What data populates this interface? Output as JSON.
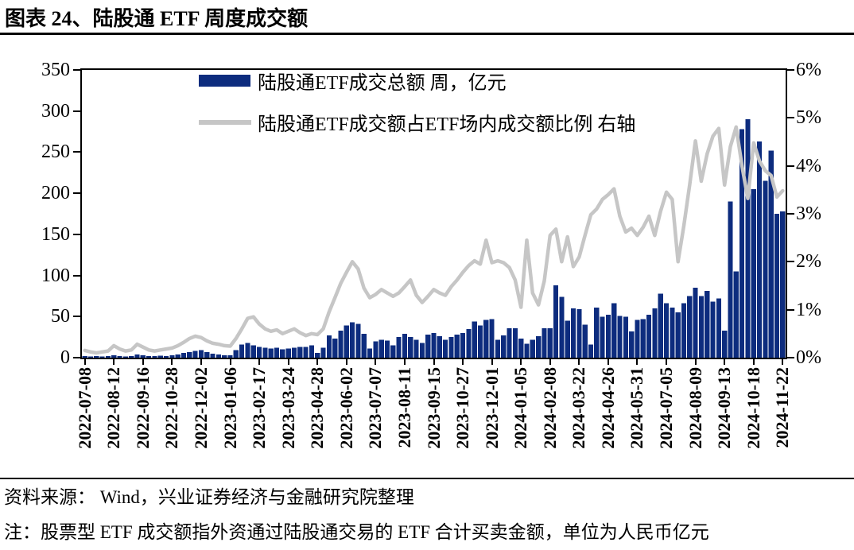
{
  "header": {
    "title": "图表 24、陆股通 ETF 周度成交额"
  },
  "footer": {
    "source": "资料来源： Wind，兴业证券经济与金融研究院整理",
    "note": "注：股票型 ETF 成交额指外资通过陆股通交易的 ETF 合计买卖金额，单位为人民币亿元"
  },
  "chart_data": {
    "type": "bar+line",
    "title": "陆股通 ETF 周度成交额",
    "points_per_tick": 5,
    "x_tick_labels": [
      "2022-07-08",
      "2022-08-12",
      "2022-09-16",
      "2022-10-28",
      "2022-12-02",
      "2023-01-06",
      "2023-02-17",
      "2023-03-24",
      "2023-04-28",
      "2023-06-02",
      "2023-07-07",
      "2023-08-11",
      "2023-09-15",
      "2023-10-27",
      "2023-12-01",
      "2024-01-05",
      "2024-02-08",
      "2024-03-22",
      "2024-04-26",
      "2024-05-31",
      "2024-07-05",
      "2024-08-09",
      "2024-09-13",
      "2024-10-18",
      "2024-11-22"
    ],
    "left_axis": {
      "ticks": [
        "0",
        "50",
        "100",
        "150",
        "200",
        "250",
        "300",
        "350"
      ],
      "range": [
        0,
        350
      ]
    },
    "right_axis": {
      "ticks": [
        "0%",
        "1%",
        "2%",
        "3%",
        "4%",
        "5%",
        "6%"
      ],
      "range": [
        0,
        6
      ]
    },
    "series": [
      {
        "name": "陆股通ETF成交总额 周，亿元",
        "type": "bar",
        "axis": "left",
        "color": "#0d2c7e",
        "values": [
          2,
          1.5,
          2,
          1.5,
          2,
          3,
          2,
          1.5,
          2,
          4,
          3,
          2,
          2,
          2.5,
          2,
          3,
          4,
          6,
          7,
          8,
          9,
          7,
          5,
          4,
          3,
          3,
          9,
          16,
          18,
          15,
          13,
          12,
          11,
          12,
          10,
          11,
          12,
          13,
          13,
          15,
          6,
          12,
          27,
          23,
          33,
          39,
          43,
          41,
          29,
          11,
          20,
          22,
          21,
          15,
          25,
          29,
          25,
          22,
          18,
          28,
          30,
          26,
          22,
          25,
          28,
          30,
          35,
          44,
          39,
          46,
          47,
          22,
          27,
          36,
          36,
          23,
          17,
          22,
          26,
          36,
          36,
          88,
          74,
          45,
          60,
          59,
          40,
          16,
          61,
          50,
          52,
          66,
          51,
          50,
          32,
          46,
          47,
          52,
          60,
          78,
          66,
          61,
          55,
          66,
          75,
          85,
          75,
          81,
          68,
          72,
          33,
          190,
          105,
          278,
          290,
          205,
          263,
          215,
          252,
          175,
          178
        ]
      },
      {
        "name": "陆股通ETF成交额占ETF场内成交额比例 右轴",
        "type": "line",
        "axis": "right",
        "color": "#c6c6c6",
        "values": [
          0.15,
          0.12,
          0.1,
          0.12,
          0.14,
          0.25,
          0.18,
          0.14,
          0.16,
          0.28,
          0.22,
          0.16,
          0.14,
          0.16,
          0.18,
          0.2,
          0.25,
          0.32,
          0.4,
          0.45,
          0.42,
          0.35,
          0.3,
          0.28,
          0.25,
          0.24,
          0.4,
          0.6,
          0.82,
          0.85,
          0.7,
          0.6,
          0.55,
          0.58,
          0.5,
          0.55,
          0.6,
          0.52,
          0.46,
          0.5,
          0.48,
          0.6,
          0.95,
          1.25,
          1.55,
          1.78,
          2.0,
          1.85,
          1.45,
          1.25,
          1.32,
          1.42,
          1.35,
          1.28,
          1.35,
          1.48,
          1.62,
          1.3,
          1.15,
          1.28,
          1.42,
          1.35,
          1.3,
          1.48,
          1.62,
          1.78,
          1.92,
          2.02,
          1.95,
          2.45,
          1.98,
          2.02,
          1.98,
          1.88,
          1.62,
          1.05,
          2.45,
          1.35,
          1.1,
          1.6,
          2.55,
          2.68,
          2.0,
          2.52,
          1.9,
          2.1,
          2.55,
          2.98,
          3.1,
          3.3,
          3.4,
          3.52,
          2.95,
          2.62,
          2.7,
          2.55,
          2.72,
          2.95,
          2.55,
          3.05,
          3.45,
          3.3,
          2.0,
          2.75,
          3.6,
          4.52,
          3.68,
          4.25,
          4.62,
          4.78,
          3.6,
          4.4,
          4.81,
          4.0,
          3.32,
          4.48,
          4.1,
          3.9,
          3.8,
          3.35,
          3.48
        ]
      }
    ]
  }
}
